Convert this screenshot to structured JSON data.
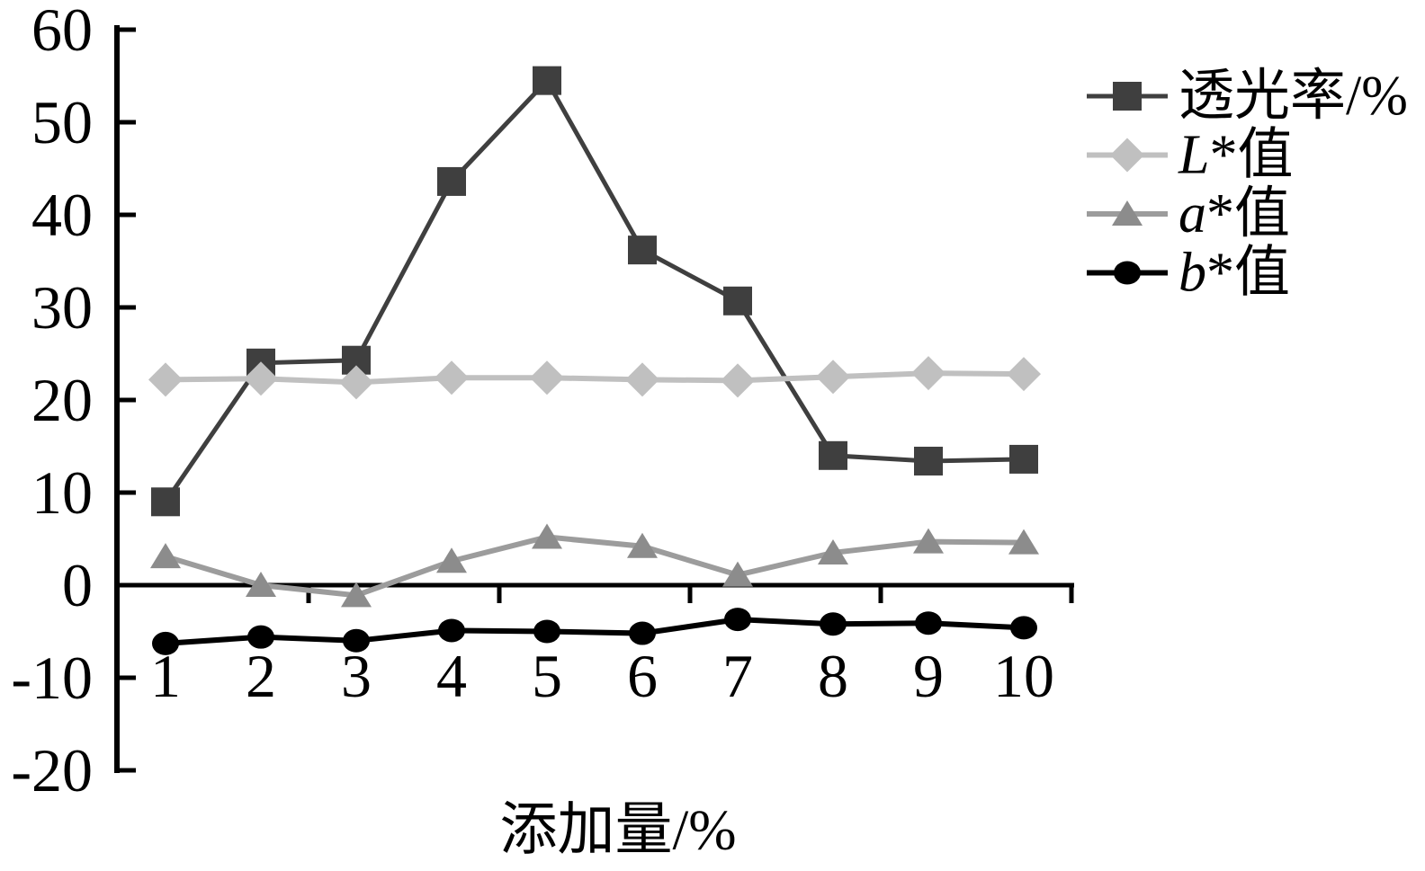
{
  "chart_data": {
    "type": "line",
    "title": "",
    "xlabel": "添加量/%",
    "ylabel": "",
    "x": [
      1,
      2,
      3,
      4,
      5,
      6,
      7,
      8,
      9,
      10
    ],
    "xlim": [
      0.5,
      10.5
    ],
    "ylim": [
      -20,
      60
    ],
    "y_ticks": [
      60,
      50,
      40,
      30,
      20,
      10,
      0,
      -10,
      -20
    ],
    "x_axis_tick_positions": [
      2.5,
      4.5,
      6.5,
      8.5,
      10.5
    ],
    "grid": false,
    "legend_position": "top-right",
    "series": [
      {
        "id": "transmittance",
        "label": "透光率/%",
        "label_italic": "",
        "label_rest": "透光率/%",
        "marker": "square",
        "color": "#3f3f3f",
        "line_color": "#3f3f3f",
        "values": [
          9.0,
          24.0,
          24.3,
          43.6,
          54.5,
          36.2,
          30.7,
          14.0,
          13.4,
          13.6
        ]
      },
      {
        "id": "l-star",
        "label": "L*值",
        "label_italic": "L",
        "label_rest": "*值",
        "marker": "diamond",
        "color": "#c0c0c0",
        "line_color": "#c0c0c0",
        "values": [
          22.2,
          22.3,
          21.9,
          22.4,
          22.4,
          22.2,
          22.1,
          22.5,
          22.9,
          22.8
        ]
      },
      {
        "id": "a-star",
        "label": "a*值",
        "label_italic": "a",
        "label_rest": "*值",
        "marker": "triangle",
        "color": "#8c8c8c",
        "line_color": "#9c9c9c",
        "values": [
          3.1,
          0.0,
          -1.1,
          2.6,
          5.2,
          4.2,
          1.1,
          3.5,
          4.7,
          4.6
        ]
      },
      {
        "id": "b-star",
        "label": "b*值",
        "label_italic": "b",
        "label_rest": "*值",
        "marker": "circle",
        "color": "#000000",
        "line_color": "#000000",
        "values": [
          -6.3,
          -5.6,
          -6.0,
          -4.9,
          -5.0,
          -5.2,
          -3.7,
          -4.2,
          -4.1,
          -4.6
        ]
      }
    ]
  }
}
